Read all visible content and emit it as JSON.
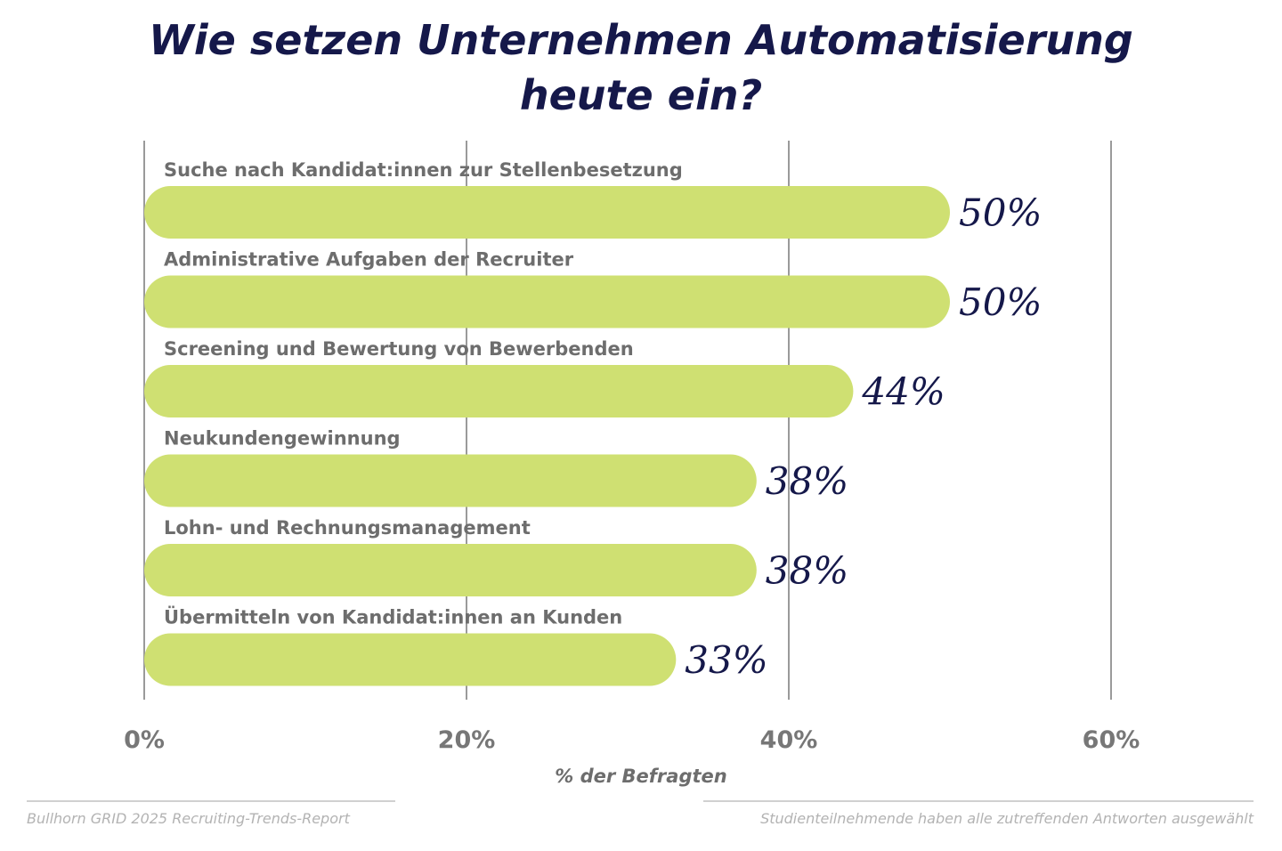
{
  "chart_data": {
    "type": "bar",
    "orientation": "horizontal",
    "title_lines": [
      "Wie setzen Unternehmen Automatisierung",
      "heute ein?"
    ],
    "categories": [
      "Suche nach Kandidat:innen zur Stellenbesetzung",
      "Administrative Aufgaben der Recruiter",
      "Screening und Bewertung von Bewerbenden",
      "Neukundengewinnung",
      "Lohn- und Rechnungsmanagement",
      "Übermitteln von Kandidat:innen an Kunden"
    ],
    "values": [
      50,
      50,
      44,
      38,
      38,
      33
    ],
    "value_labels": [
      "50%",
      "50%",
      "44%",
      "38%",
      "38%",
      "33%"
    ],
    "xlabel": "% der Befragten",
    "xlim": [
      0,
      60
    ],
    "xticks": [
      0,
      20,
      40,
      60
    ],
    "xtick_labels": [
      "0%",
      "20%",
      "40%",
      "60%"
    ],
    "grid": true,
    "colors": {
      "bar": "#cfe072",
      "title": "#15184a",
      "value": "#15184a",
      "label": "#6d6d6d"
    }
  },
  "footer": {
    "source": "Bullhorn GRID 2025 Recruiting-Trends-Report",
    "note": "Studienteilnehmende haben alle zutreffenden Antworten ausgewählt"
  }
}
